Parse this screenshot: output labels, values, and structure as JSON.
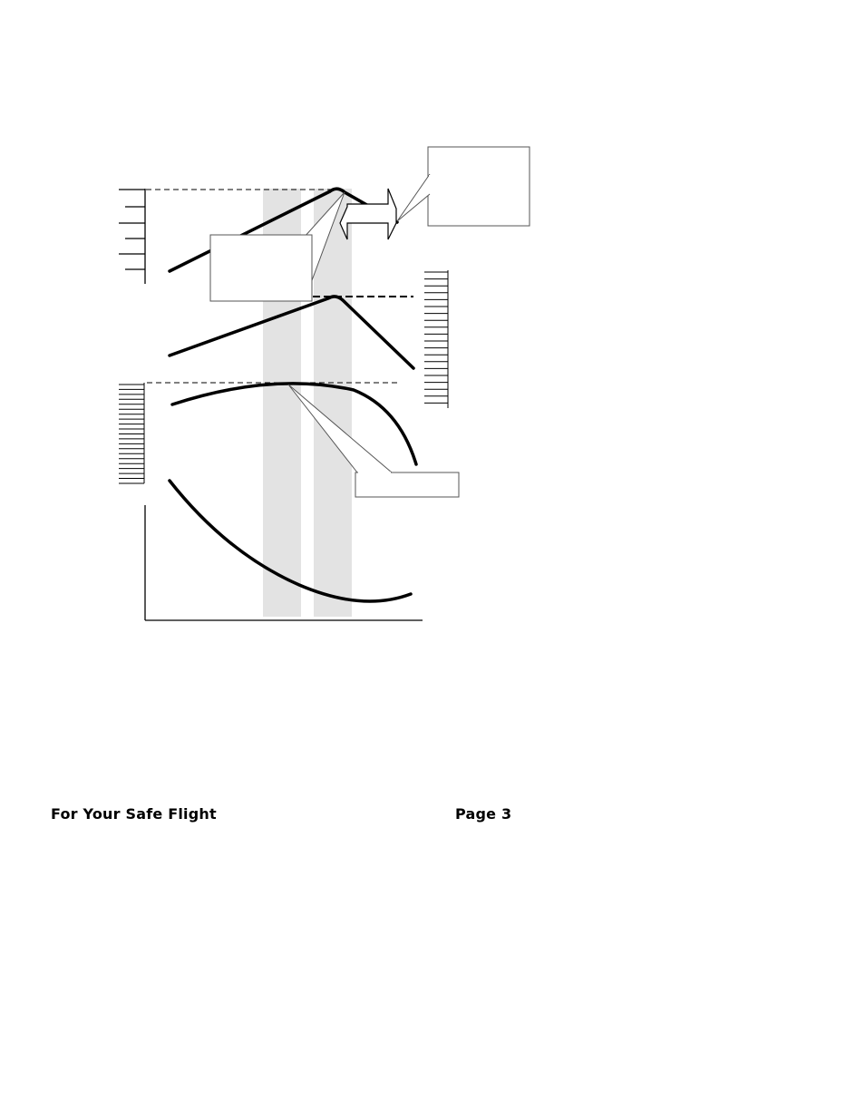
{
  "footer": {
    "left_text": "For Your Safe Flight",
    "right_text": "Page 3"
  },
  "colors": {
    "curve": "#000000",
    "band": "#e3e3e3",
    "callout_border": "#555555"
  }
}
